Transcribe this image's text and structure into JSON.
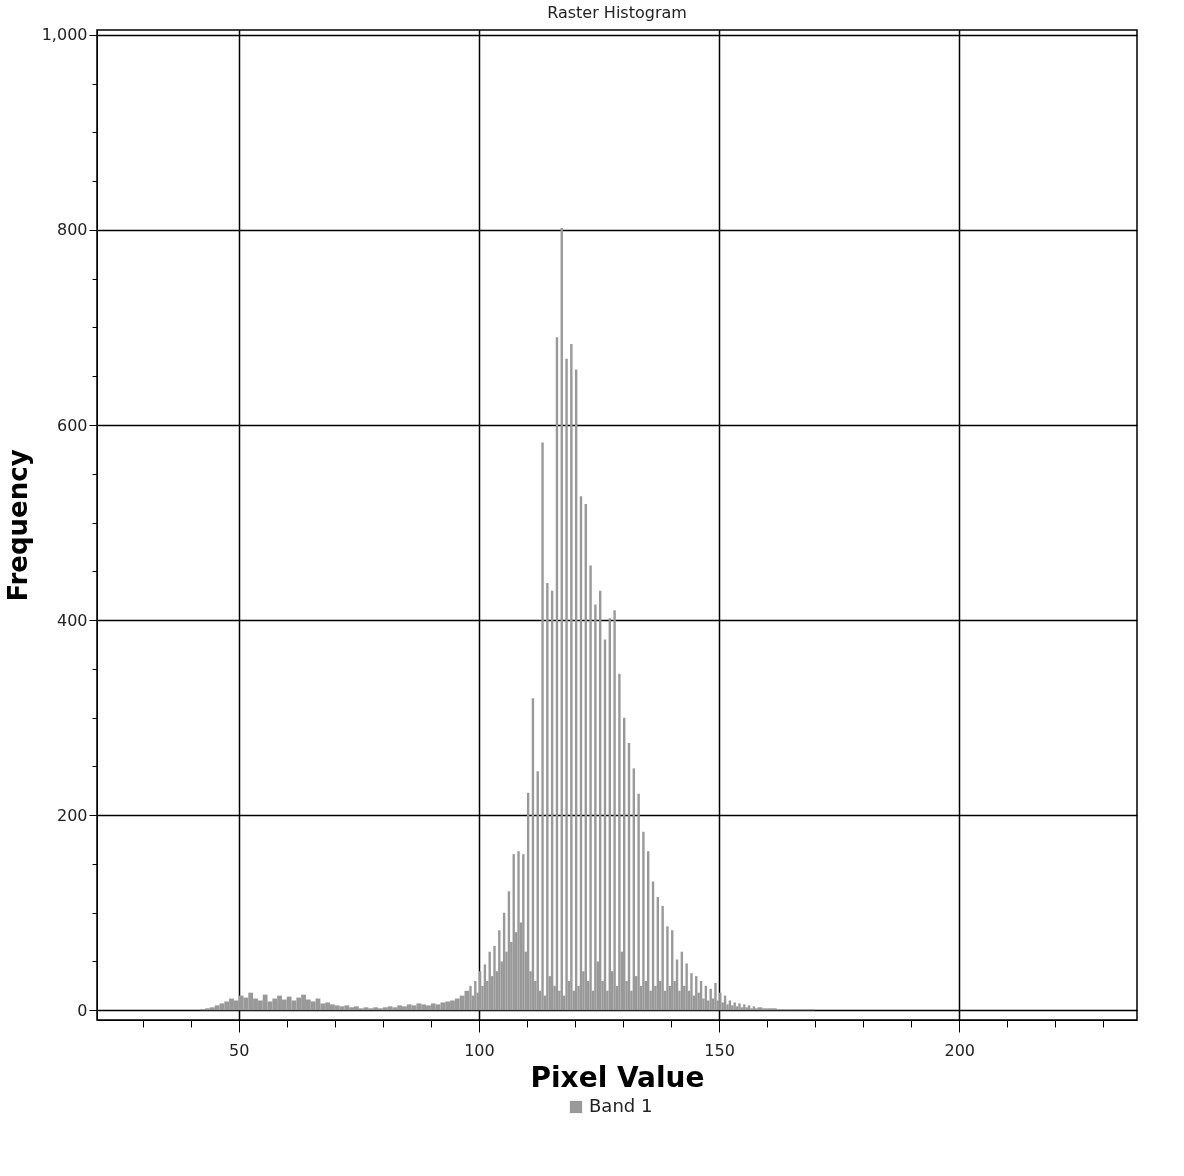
{
  "chart_data": {
    "type": "histogram",
    "title": "Raster Histogram",
    "xlabel": "Pixel Value",
    "ylabel": "Frequency",
    "bins": [
      42,
      43,
      44,
      45,
      46,
      47,
      48,
      49,
      50,
      51,
      52,
      53,
      54,
      55,
      56,
      57,
      58,
      59,
      60,
      61,
      62,
      63,
      64,
      65,
      66,
      67,
      68,
      69,
      70,
      71,
      72,
      73,
      74,
      75,
      76,
      77,
      78,
      79,
      80,
      81,
      82,
      83,
      84,
      85,
      86,
      87,
      88,
      89,
      90,
      91,
      92,
      93,
      94,
      95,
      96,
      97,
      98,
      98.5,
      99,
      99.5,
      100,
      100.5,
      101,
      101.5,
      102,
      102.5,
      103,
      103.5,
      104,
      104.5,
      105,
      105.5,
      106,
      106.5,
      107,
      107.5,
      108,
      108.5,
      109,
      109.5,
      110,
      110.5,
      111,
      111.5,
      112,
      112.5,
      113,
      113.5,
      114,
      114.5,
      115,
      115.5,
      116,
      116.5,
      117,
      117.5,
      118,
      118.5,
      119,
      119.5,
      120,
      120.5,
      121,
      121.5,
      122,
      122.5,
      123,
      123.5,
      124,
      124.5,
      125,
      125.5,
      126,
      126.5,
      127,
      127.5,
      128,
      128.5,
      129,
      129.5,
      130,
      130.5,
      131,
      131.5,
      132,
      132.5,
      133,
      133.5,
      134,
      134.5,
      135,
      135.5,
      136,
      136.5,
      137,
      137.5,
      138,
      138.5,
      139,
      139.5,
      140,
      140.5,
      141,
      141.5,
      142,
      142.5,
      143,
      143.5,
      144,
      144.5,
      145,
      145.5,
      146,
      146.5,
      147,
      147.5,
      148,
      148.5,
      149,
      149.5,
      150,
      150.5,
      151,
      151.5,
      152,
      152.5,
      153,
      153.5,
      154,
      154.5,
      155,
      155.5,
      156,
      156.5,
      157,
      157.5,
      158,
      159,
      160,
      161,
      162,
      163,
      164,
      165,
      166,
      167,
      168,
      169,
      170
    ],
    "series": [
      {
        "name": "Band 1",
        "color": "#999999",
        "values": [
          1,
          2,
          3,
          5,
          7,
          9,
          12,
          10,
          15,
          13,
          18,
          12,
          10,
          16,
          9,
          12,
          15,
          11,
          14,
          10,
          13,
          16,
          11,
          9,
          12,
          7,
          8,
          6,
          5,
          4,
          5,
          3,
          4,
          2,
          3,
          2,
          3,
          2,
          3,
          4,
          3,
          5,
          4,
          6,
          5,
          7,
          6,
          5,
          7,
          6,
          8,
          9,
          10,
          12,
          15,
          20,
          25,
          15,
          30,
          18,
          40,
          25,
          47,
          30,
          60,
          35,
          66,
          40,
          82,
          50,
          100,
          60,
          122,
          70,
          160,
          80,
          163,
          90,
          160,
          60,
          223,
          40,
          320,
          30,
          245,
          20,
          582,
          15,
          438,
          35,
          430,
          25,
          690,
          20,
          802,
          15,
          668,
          30,
          683,
          20,
          657,
          25,
          527,
          40,
          519,
          30,
          456,
          20,
          416,
          50,
          430,
          30,
          380,
          20,
          402,
          40,
          410,
          25,
          345,
          60,
          300,
          30,
          274,
          20,
          248,
          35,
          222,
          25,
          183,
          30,
          163,
          20,
          132,
          25,
          116,
          30,
          107,
          20,
          86,
          25,
          82,
          30,
          52,
          20,
          60,
          25,
          48,
          20,
          38,
          15,
          35,
          18,
          30,
          12,
          25,
          10,
          22,
          12,
          28,
          10,
          18,
          8,
          15,
          6,
          10,
          5,
          8,
          4,
          7,
          3,
          6,
          3,
          5,
          2,
          4,
          2,
          3,
          2,
          2,
          2,
          1,
          1,
          1,
          1,
          1,
          1,
          1,
          1
        ]
      }
    ],
    "xlim": [
      20.5,
      237
    ],
    "ylim": [
      -10,
      1005
    ],
    "xticks": [
      {
        "value": 30,
        "label": null
      },
      {
        "value": 40,
        "label": null
      },
      50,
      {
        "value": 60,
        "label": null
      },
      {
        "value": 70,
        "label": null
      },
      {
        "value": 80,
        "label": null
      },
      {
        "value": 90,
        "label": null
      },
      100,
      {
        "value": 110,
        "label": null
      },
      {
        "value": 120,
        "label": null
      },
      {
        "value": 130,
        "label": null
      },
      {
        "value": 140,
        "label": null
      },
      150,
      {
        "value": 160,
        "label": null
      },
      {
        "value": 170,
        "label": null
      },
      {
        "value": 180,
        "label": null
      },
      {
        "value": 190,
        "label": null
      },
      200,
      {
        "value": 210,
        "label": null
      },
      {
        "value": 220,
        "label": null
      },
      {
        "value": 230,
        "label": null
      }
    ],
    "yticks": [
      0,
      {
        "value": 50,
        "label": null
      },
      {
        "value": 100,
        "label": null
      },
      {
        "value": 150,
        "label": null
      },
      200,
      {
        "value": 250,
        "label": null
      },
      {
        "value": 300,
        "label": null
      },
      {
        "value": 350,
        "label": null
      },
      400,
      {
        "value": 450,
        "label": null
      },
      {
        "value": 500,
        "label": null
      },
      {
        "value": 550,
        "label": null
      },
      600,
      {
        "value": 650,
        "label": null
      },
      {
        "value": 700,
        "label": null
      },
      {
        "value": 750,
        "label": null
      },
      800,
      {
        "value": 850,
        "label": null
      },
      {
        "value": 900,
        "label": null
      },
      {
        "value": 950,
        "label": null
      },
      {
        "value": 1000,
        "label": "1,000"
      }
    ],
    "grid": true,
    "legend": "bottom"
  }
}
